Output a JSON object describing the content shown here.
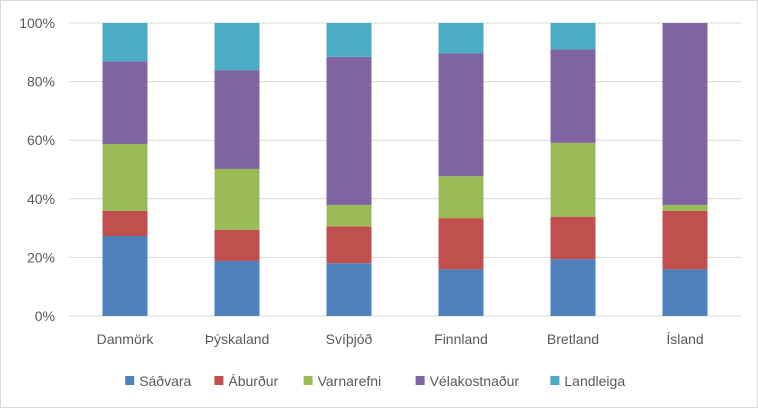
{
  "chart_data": {
    "type": "bar",
    "stacked": "percent",
    "categories": [
      "Danmörk",
      "Þýskaland",
      "Svíþjóð",
      "Finnland",
      "Bretland",
      "Ísland"
    ],
    "series": [
      {
        "name": "Sáðvara",
        "color": "#4f81bd",
        "values": [
          27.3,
          18.8,
          18.0,
          15.9,
          19.4,
          15.9
        ]
      },
      {
        "name": "Áburður",
        "color": "#c0504d",
        "values": [
          8.6,
          10.6,
          12.6,
          17.5,
          14.5,
          20.0
        ]
      },
      {
        "name": "Varnarefni",
        "color": "#9bbb59",
        "values": [
          22.8,
          20.8,
          7.3,
          14.3,
          25.2,
          2.0
        ]
      },
      {
        "name": "Vélakostnaður",
        "color": "#8064a2",
        "values": [
          28.2,
          33.7,
          50.6,
          41.9,
          31.9,
          62.1
        ]
      },
      {
        "name": "Landleiga",
        "color": "#4bacc6",
        "values": [
          13.1,
          16.1,
          11.5,
          10.4,
          9.0,
          0
        ]
      }
    ],
    "yticks": [
      "0%",
      "20%",
      "40%",
      "60%",
      "80%",
      "100%"
    ],
    "ylim": [
      0,
      100
    ],
    "grid": true,
    "legend": "bottom",
    "title": "",
    "xlabel": "",
    "ylabel": ""
  }
}
